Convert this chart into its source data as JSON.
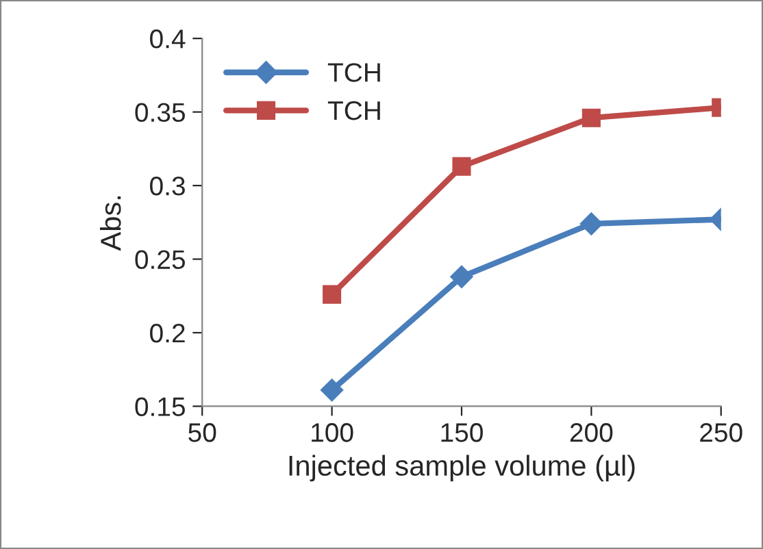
{
  "chart_data": {
    "type": "line",
    "xlabel": "Injected sample volume (µl)",
    "ylabel": "Abs.",
    "x": [
      100,
      150,
      200,
      250
    ],
    "series": [
      {
        "name": "TCH",
        "color": "#4a7ebb",
        "marker": "diamond",
        "values": [
          0.161,
          0.238,
          0.274,
          0.277
        ]
      },
      {
        "name": "TCH",
        "color": "#be4b48",
        "marker": "square",
        "values": [
          0.226,
          0.313,
          0.346,
          0.353
        ]
      }
    ],
    "xlim": [
      50,
      250
    ],
    "xticks": [
      50,
      100,
      150,
      200,
      250
    ],
    "ylim": [
      0.15,
      0.4
    ],
    "yticks": [
      0.15,
      0.2,
      0.25,
      0.3,
      0.35,
      0.4
    ],
    "grid": false,
    "legend": "top left",
    "line_style": "solid"
  }
}
